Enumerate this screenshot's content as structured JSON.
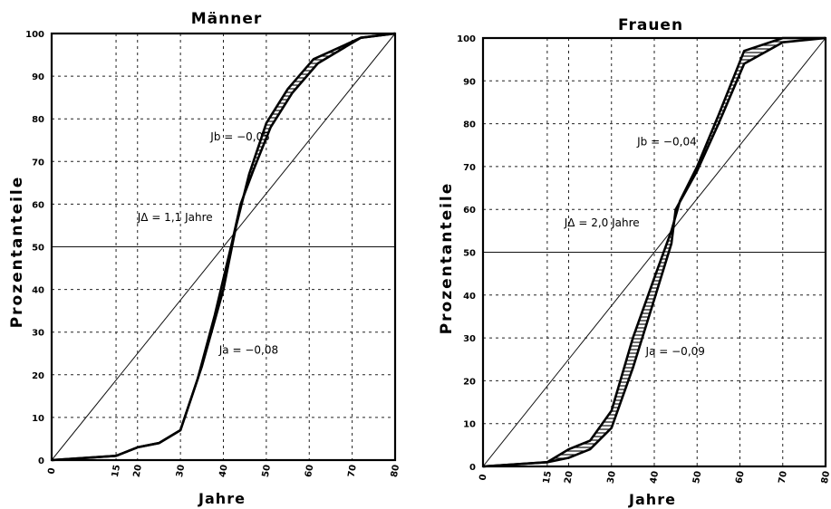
{
  "chart_data": [
    {
      "type": "line",
      "title": "Männer",
      "xlabel": "Jahre",
      "ylabel": "Prozentanteile",
      "xlim": [
        0,
        80
      ],
      "ylim": [
        0,
        100
      ],
      "x_ticks": [
        0,
        15,
        20,
        30,
        40,
        50,
        60,
        70,
        80
      ],
      "x_tick_labels": [
        "0",
        "15",
        "20",
        "30",
        "40",
        "50",
        "60",
        "70",
        "80"
      ],
      "y_ticks": [
        0,
        10,
        20,
        30,
        40,
        50,
        60,
        70,
        80,
        90,
        100
      ],
      "y_tick_labels": [
        "0",
        "10",
        "20",
        "30",
        "40",
        "50",
        "60",
        "70",
        "80",
        "90",
        "100"
      ],
      "grid": true,
      "reference_lines": [
        {
          "type": "diagonal",
          "from": [
            0,
            0
          ],
          "to": [
            80,
            100
          ]
        },
        {
          "type": "horizontal",
          "y": 50
        }
      ],
      "series": [
        {
          "points": [
            [
              0,
              0
            ],
            [
              15,
              1
            ],
            [
              20,
              3
            ],
            [
              25,
              4
            ],
            [
              30,
              7
            ],
            [
              35,
              22
            ],
            [
              40,
              40
            ],
            [
              43,
              55
            ],
            [
              46,
              67
            ],
            [
              50,
              79
            ],
            [
              55,
              87
            ],
            [
              61,
              94
            ],
            [
              72,
              99
            ],
            [
              80,
              100
            ]
          ]
        },
        {
          "points": [
            [
              0,
              0
            ],
            [
              15,
              1
            ],
            [
              20,
              3
            ],
            [
              25,
              4
            ],
            [
              30,
              7
            ],
            [
              34,
              19
            ],
            [
              38,
              34
            ],
            [
              42,
              51
            ],
            [
              44,
              60
            ],
            [
              47,
              68
            ],
            [
              51,
              78
            ],
            [
              56,
              86
            ],
            [
              62,
              93
            ],
            [
              72,
              99
            ],
            [
              80,
              100
            ]
          ]
        }
      ],
      "annotations": [
        {
          "text": "Jb = −0,05",
          "x": 37,
          "y": 75
        },
        {
          "text": "JΔ = 1,1 Jahre",
          "x": 20,
          "y": 56
        },
        {
          "text": "Ja = −0,08",
          "x": 39,
          "y": 25
        }
      ]
    },
    {
      "type": "line",
      "title": "Frauen",
      "xlabel": "Jahre",
      "ylabel": "Prozentanteile",
      "xlim": [
        0,
        80
      ],
      "ylim": [
        0,
        100
      ],
      "x_ticks": [
        0,
        15,
        20,
        30,
        40,
        50,
        60,
        70,
        80
      ],
      "x_tick_labels": [
        "0",
        "15",
        "20",
        "30",
        "40",
        "50",
        "60",
        "70",
        "80"
      ],
      "y_ticks": [
        0,
        10,
        20,
        30,
        40,
        50,
        60,
        70,
        80,
        90,
        100
      ],
      "y_tick_labels": [
        "0",
        "10",
        "20",
        "30",
        "40",
        "50",
        "60",
        "70",
        "80",
        "90",
        "100"
      ],
      "grid": true,
      "reference_lines": [
        {
          "type": "diagonal",
          "from": [
            0,
            0
          ],
          "to": [
            80,
            100
          ]
        },
        {
          "type": "horizontal",
          "y": 50
        }
      ],
      "series": [
        {
          "points": [
            [
              0,
              0
            ],
            [
              15,
              1
            ],
            [
              20,
              4
            ],
            [
              25,
              6
            ],
            [
              30,
              13
            ],
            [
              35,
              30
            ],
            [
              40,
              44
            ],
            [
              44,
              55
            ],
            [
              46,
              62
            ],
            [
              50,
              70
            ],
            [
              55,
              82
            ],
            [
              61,
              97
            ],
            [
              70,
              100
            ],
            [
              80,
              100
            ]
          ]
        },
        {
          "points": [
            [
              0,
              0
            ],
            [
              15,
              1
            ],
            [
              20,
              2
            ],
            [
              25,
              4
            ],
            [
              30,
              9
            ],
            [
              35,
              23
            ],
            [
              40,
              39
            ],
            [
              44,
              52
            ],
            [
              45,
              60
            ],
            [
              50,
              69
            ],
            [
              55,
              80
            ],
            [
              61,
              94
            ],
            [
              70,
              99
            ],
            [
              80,
              100
            ]
          ]
        }
      ],
      "annotations": [
        {
          "text": "Jb = −0,04",
          "x": 36,
          "y": 75
        },
        {
          "text": "JΔ = 2,0 Jahre",
          "x": 19,
          "y": 56
        },
        {
          "text": "Ja = −0,09",
          "x": 38,
          "y": 26
        }
      ]
    }
  ]
}
